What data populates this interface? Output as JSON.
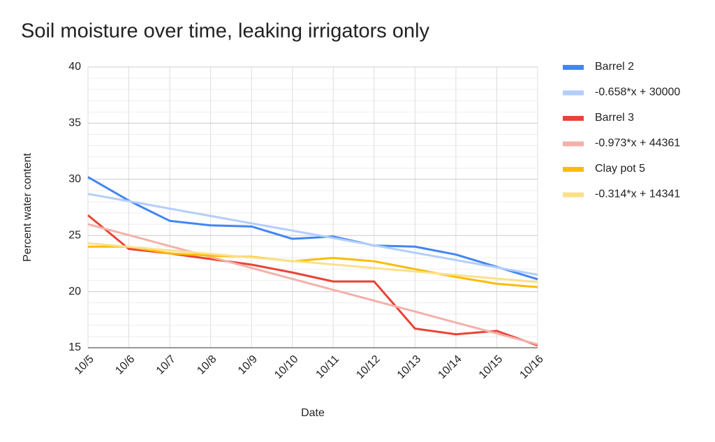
{
  "chart_data": {
    "type": "line",
    "title": "Soil moisture over time, leaking irrigators only",
    "x_label": "Date",
    "y_label": "Percent water content",
    "categories": [
      "10/5",
      "10/6",
      "10/7",
      "10/8",
      "10/9",
      "10/10",
      "10/11",
      "10/12",
      "10/13",
      "10/14",
      "10/15",
      "10/16"
    ],
    "ylim": [
      15,
      40
    ],
    "yticks": [
      15,
      20,
      25,
      30,
      35,
      40
    ],
    "grid": true,
    "legend": "right",
    "series": [
      {
        "name": "Barrel 2",
        "color": "#4285f4",
        "values": [
          30.2,
          28.1,
          26.3,
          25.9,
          25.8,
          24.7,
          24.9,
          24.1,
          24.0,
          23.3,
          22.2,
          21.1
        ]
      },
      {
        "name": "-0.658*x + 30000",
        "color": "#b3cefb",
        "values": [
          28.7,
          28.05,
          27.39,
          26.74,
          26.08,
          25.43,
          24.77,
          24.12,
          23.46,
          22.81,
          22.15,
          21.5
        ]
      },
      {
        "name": "Barrel 3",
        "color": "#ea4335",
        "values": [
          26.8,
          23.8,
          23.4,
          22.9,
          22.4,
          21.7,
          20.9,
          20.9,
          16.7,
          16.2,
          16.5,
          15.2
        ]
      },
      {
        "name": "-0.973*x + 44361",
        "color": "#f5b0aa",
        "values": [
          26.0,
          25.03,
          24.05,
          23.08,
          22.11,
          21.13,
          20.16,
          19.19,
          18.22,
          17.24,
          16.27,
          15.3
        ]
      },
      {
        "name": "Clay pot 5",
        "color": "#fbbc04",
        "values": [
          24.0,
          24.0,
          23.4,
          23.2,
          23.1,
          22.7,
          23.0,
          22.7,
          22.0,
          21.3,
          20.7,
          20.4
        ]
      },
      {
        "name": "-0.314*x + 14341",
        "color": "#fce08a",
        "values": [
          24.3,
          23.99,
          23.67,
          23.36,
          23.04,
          22.73,
          22.42,
          22.1,
          21.79,
          21.47,
          21.16,
          20.85
        ]
      }
    ]
  }
}
